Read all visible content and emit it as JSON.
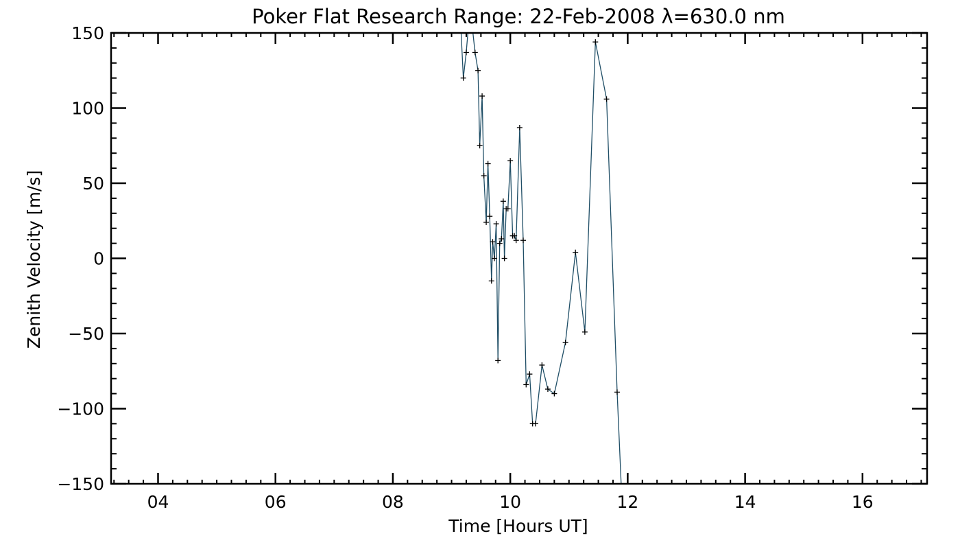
{
  "chart_data": {
    "type": "line",
    "title": "Poker Flat Research Range: 22-Feb-2008 λ=630.0 nm",
    "xlabel": "Time [Hours UT]",
    "ylabel": "Zenith Velocity [m/s]",
    "xlim": [
      3.2,
      17.1
    ],
    "ylim": [
      -150,
      150
    ],
    "x_ticks": [
      {
        "value": 4,
        "label": "04"
      },
      {
        "value": 6,
        "label": "06"
      },
      {
        "value": 8,
        "label": "08"
      },
      {
        "value": 10,
        "label": "10"
      },
      {
        "value": 12,
        "label": "12"
      },
      {
        "value": 14,
        "label": "14"
      },
      {
        "value": 16,
        "label": "16"
      }
    ],
    "x_minor_step": 0.25,
    "y_ticks": [
      {
        "value": -150,
        "label": "−150"
      },
      {
        "value": -100,
        "label": "−100"
      },
      {
        "value": -50,
        "label": "−50"
      },
      {
        "value": 0,
        "label": "0"
      },
      {
        "value": 50,
        "label": "50"
      },
      {
        "value": 100,
        "label": "100"
      },
      {
        "value": 150,
        "label": "150"
      }
    ],
    "y_minor_step": 10,
    "grid": false,
    "line_color": "#1f4e66",
    "marker": "plus",
    "series": [
      {
        "x": [
          9.15,
          9.2,
          9.25,
          9.3,
          9.35,
          9.4,
          9.45,
          9.48,
          9.52,
          9.55,
          9.59,
          9.62,
          9.65,
          9.68,
          9.7,
          9.73,
          9.76,
          9.79,
          9.82,
          9.85,
          9.88,
          9.9,
          9.93,
          9.96,
          10.0,
          10.04,
          10.07,
          10.1,
          10.16,
          10.22,
          10.27,
          10.33,
          10.38,
          10.43,
          10.54,
          10.64,
          10.75,
          10.94,
          11.11,
          11.27,
          11.45,
          11.64,
          11.82,
          11.9
        ],
        "y": [
          160,
          120,
          137,
          160,
          155,
          137,
          125,
          75,
          108,
          55,
          24,
          63,
          28,
          -15,
          11,
          0,
          23,
          -68,
          10,
          13,
          38,
          0,
          33,
          33,
          65,
          15,
          15,
          12,
          87,
          12,
          -84,
          -77,
          -110,
          -110,
          -71,
          -87,
          -90,
          -56,
          4,
          -49,
          144,
          106,
          -89,
          -160
        ]
      }
    ]
  }
}
